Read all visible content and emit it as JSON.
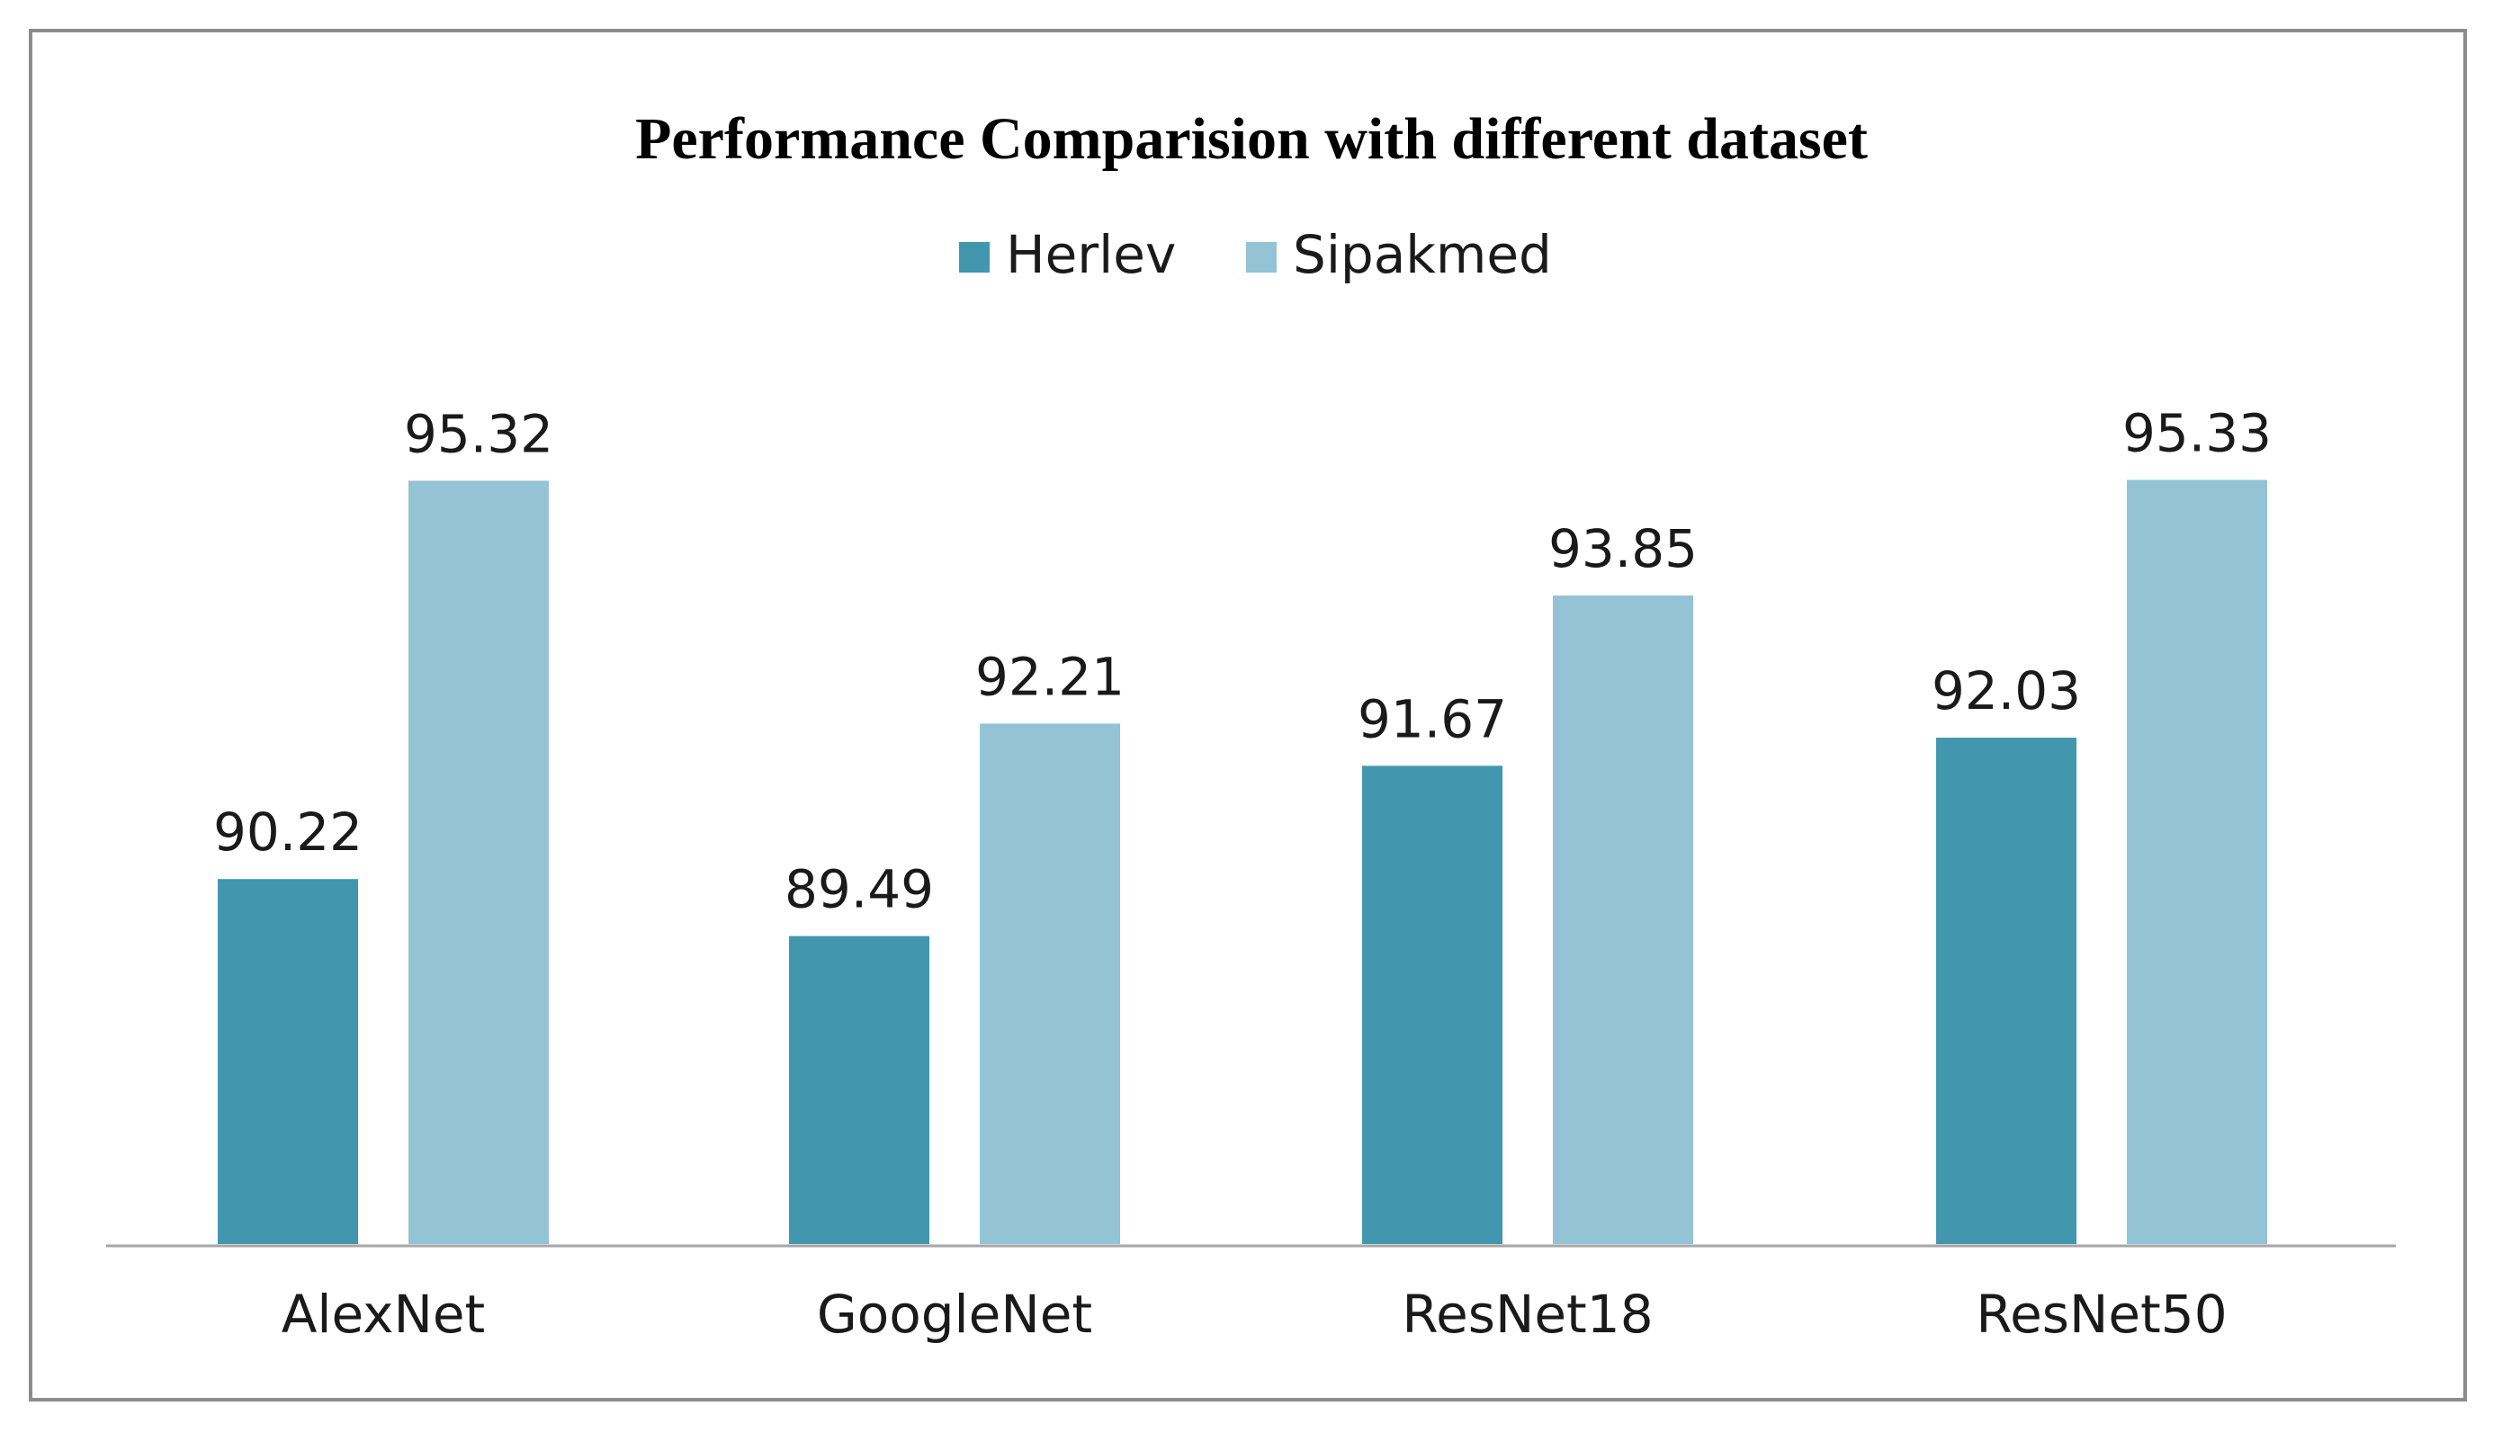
{
  "chart_data": {
    "type": "bar",
    "title": "Performance Comparision  with  different  dataset",
    "categories": [
      "AlexNet",
      "GoogleNet",
      "ResNet18",
      "ResNet50"
    ],
    "series": [
      {
        "name": "Herlev",
        "color": "#4297ae",
        "values": [
          90.22,
          89.49,
          91.67,
          92.03
        ]
      },
      {
        "name": "Sipakmed",
        "color": "#93c3d5",
        "values": [
          95.32,
          92.21,
          93.85,
          95.33
        ]
      }
    ],
    "data_labels": [
      [
        "90.22",
        "89.49",
        "91.67",
        "92.03"
      ],
      [
        "95.32",
        "92.21",
        "93.85",
        "95.33"
      ]
    ],
    "ylim": [
      85.5,
      96.2
    ],
    "grid": false,
    "legend_position": "top-center",
    "xlabel": "",
    "ylabel": ""
  }
}
